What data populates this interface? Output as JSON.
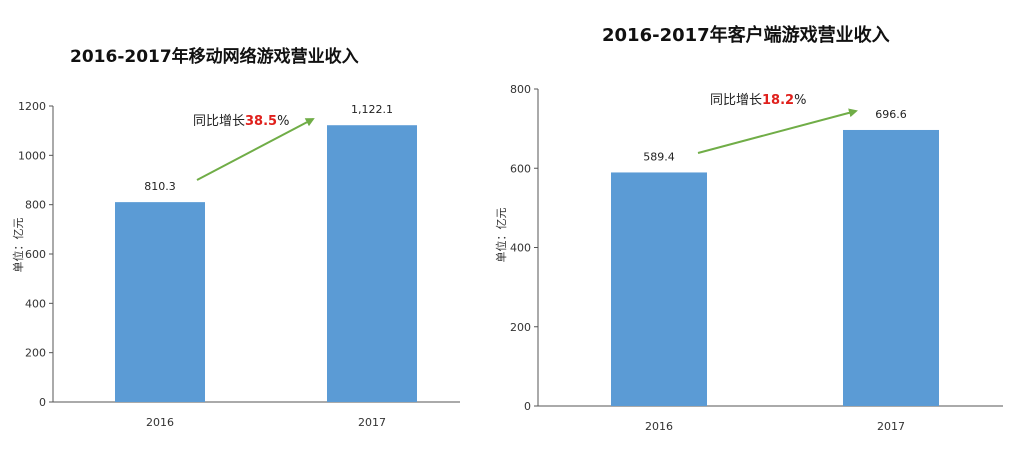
{
  "chart_data": [
    {
      "type": "bar",
      "title": "2016-2017年移动网络游戏营业收入",
      "ylabel": "单位：亿元",
      "categories": [
        "2016",
        "2017"
      ],
      "values": [
        810.3,
        1122.1
      ],
      "value_labels": [
        "810.3",
        "1,122.1"
      ],
      "ylim": [
        0,
        1200
      ],
      "yticks": [
        "0",
        "200",
        "400",
        "600",
        "800",
        "1000",
        "1200"
      ],
      "grid": false,
      "bar_color": "#5b9bd5",
      "annotation": {
        "prefix": "同比增长",
        "value": "38.5",
        "suffix": "%",
        "arrow_color": "#70ad47",
        "value_color": "#e0201c"
      }
    },
    {
      "type": "bar",
      "title": "2016-2017年客户端游戏营业收入",
      "ylabel": "单位：亿元",
      "categories": [
        "2016",
        "2017"
      ],
      "values": [
        589.4,
        696.6
      ],
      "value_labels": [
        "589.4",
        "696.6"
      ],
      "ylim": [
        0,
        800
      ],
      "yticks": [
        "0",
        "200",
        "400",
        "600",
        "800"
      ],
      "grid": false,
      "bar_color": "#5b9bd5",
      "annotation": {
        "prefix": "同比增长",
        "value": "18.2",
        "suffix": "%",
        "arrow_color": "#70ad47",
        "value_color": "#e0201c"
      }
    }
  ]
}
